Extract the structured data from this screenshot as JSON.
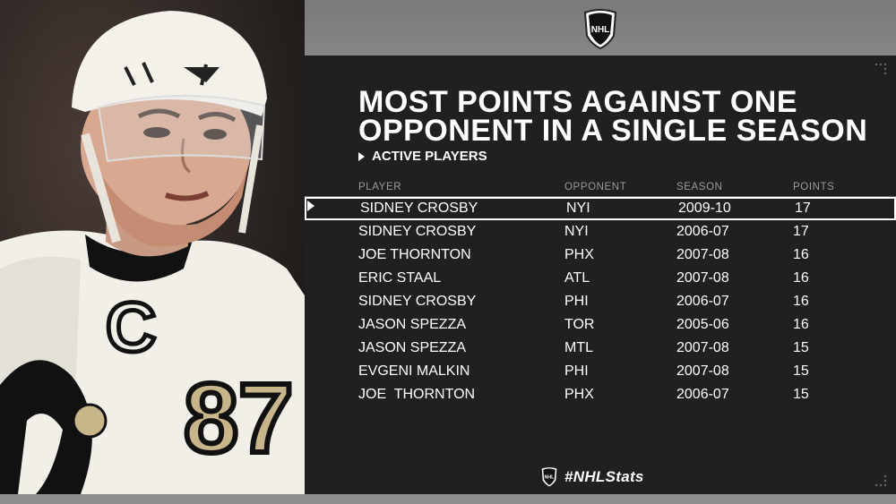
{
  "logo": {
    "top_text": "NHL",
    "footer_text": "NHL"
  },
  "title": {
    "line1": "MOST POINTS AGAINST ONE",
    "line2": "OPPONENT IN A SINGLE SEASON"
  },
  "subtitle": "ACTIVE PLAYERS",
  "columns": [
    "PLAYER",
    "OPPONENT",
    "SEASON",
    "POINTS"
  ],
  "rows": [
    {
      "player": "SIDNEY CROSBY",
      "opponent": "NYI",
      "season": "2009-10",
      "points": "17",
      "highlighted": true
    },
    {
      "player": "SIDNEY CROSBY",
      "opponent": "NYI",
      "season": "2006-07",
      "points": "17"
    },
    {
      "player": "JOE THORNTON",
      "opponent": "PHX",
      "season": "2007-08",
      "points": "16"
    },
    {
      "player": "ERIC STAAL",
      "opponent": "ATL",
      "season": "2007-08",
      "points": "16"
    },
    {
      "player": "SIDNEY CROSBY",
      "opponent": "PHI",
      "season": "2006-07",
      "points": "16"
    },
    {
      "player": "JASON SPEZZA",
      "opponent": "TOR",
      "season": "2005-06",
      "points": "16"
    },
    {
      "player": "JASON SPEZZA",
      "opponent": "MTL",
      "season": "2007-08",
      "points": "15"
    },
    {
      "player": "EVGENI MALKIN",
      "opponent": "PHI",
      "season": "2007-08",
      "points": "15"
    },
    {
      "player": "JOE  THORNTON",
      "opponent": "PHX",
      "season": "2006-07",
      "points": "15"
    }
  ],
  "hashtag": "#NHLStats",
  "photo": {
    "jersey_number": "87",
    "captain_letter": "C"
  },
  "colors": {
    "panel": "#221f20",
    "text": "#ffffff",
    "header_text": "#9a9a9a"
  }
}
